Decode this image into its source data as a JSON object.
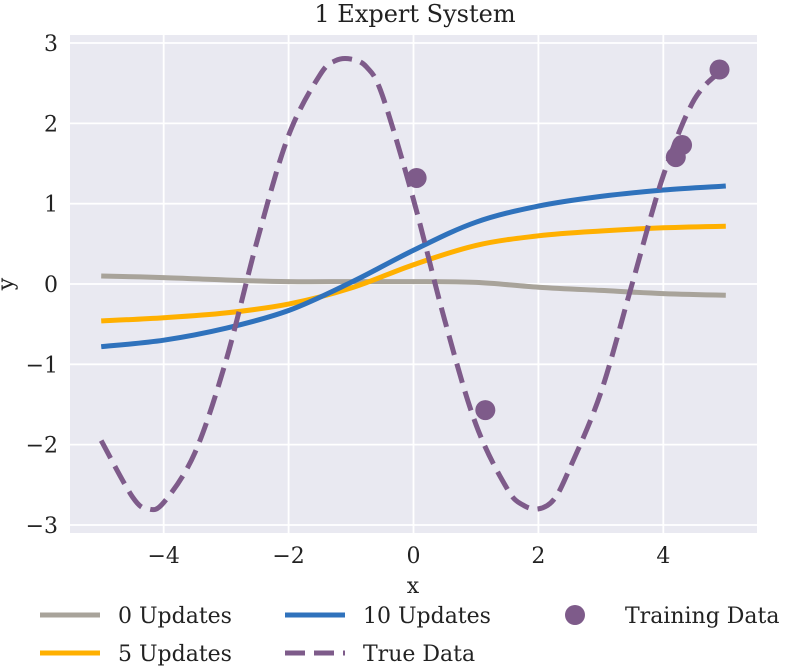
{
  "chart_data": {
    "type": "line",
    "title": "1 Expert System",
    "xlabel": "x",
    "ylabel": "y",
    "xlim": [
      -5.5,
      5.5
    ],
    "ylim": [
      -3.1,
      3.1
    ],
    "xticks": [
      -4,
      -2,
      0,
      2,
      4
    ],
    "xtick_labels": [
      "−4",
      "−2",
      "0",
      "2",
      "4"
    ],
    "yticks": [
      3,
      2,
      1,
      0,
      -1,
      -2,
      -3
    ],
    "ytick_labels": [
      "3",
      "2",
      "1",
      "0",
      "−1",
      "−2",
      "−3"
    ],
    "grid": true,
    "background_color": "#e9e9f1",
    "legend_placement": "bottom",
    "series": [
      {
        "name": "0 Updates",
        "color": "#a8a39a",
        "style": "solid",
        "x": [
          -5,
          -4,
          -3,
          -2,
          -1,
          0,
          1,
          2,
          3,
          4,
          5
        ],
        "y": [
          0.1,
          0.08,
          0.05,
          0.03,
          0.03,
          0.03,
          0.02,
          -0.04,
          -0.08,
          -0.12,
          -0.14
        ]
      },
      {
        "name": "5 Updates",
        "color": "#ffb000",
        "style": "solid",
        "x": [
          -5,
          -4,
          -3,
          -2,
          -1,
          0,
          1,
          2,
          3,
          4,
          5
        ],
        "y": [
          -0.46,
          -0.42,
          -0.36,
          -0.25,
          -0.05,
          0.24,
          0.48,
          0.6,
          0.66,
          0.7,
          0.72
        ]
      },
      {
        "name": "10 Updates",
        "color": "#2f72bc",
        "style": "solid",
        "x": [
          -5,
          -4,
          -3,
          -2,
          -1,
          0,
          1,
          2,
          3,
          4,
          5
        ],
        "y": [
          -0.78,
          -0.7,
          -0.55,
          -0.33,
          0.02,
          0.42,
          0.77,
          0.97,
          1.09,
          1.17,
          1.22
        ]
      },
      {
        "name": "True Data",
        "color": "#7e5b8a",
        "style": "dashed",
        "x": [
          -5,
          -4.5,
          -4.25,
          -4,
          -3.5,
          -3,
          -2.5,
          -2,
          -1.5,
          -1.25,
          -1,
          -0.75,
          -0.5,
          0,
          0.5,
          1,
          1.5,
          1.75,
          2,
          2.25,
          2.5,
          3,
          3.5,
          4,
          4.5,
          5
        ],
        "y": [
          -1.95,
          -2.65,
          -2.8,
          -2.72,
          -2.1,
          -0.95,
          0.55,
          1.85,
          2.6,
          2.78,
          2.8,
          2.7,
          2.35,
          1.05,
          -0.45,
          -1.75,
          -2.55,
          -2.75,
          -2.8,
          -2.68,
          -2.3,
          -1.35,
          0.0,
          1.35,
          2.3,
          2.7
        ]
      }
    ],
    "scatter": {
      "name": "Training Data",
      "color": "#7e5b8a",
      "x": [
        0.05,
        1.15,
        4.2,
        4.3,
        4.9
      ],
      "y": [
        1.32,
        -1.57,
        1.58,
        1.73,
        2.67
      ]
    }
  }
}
